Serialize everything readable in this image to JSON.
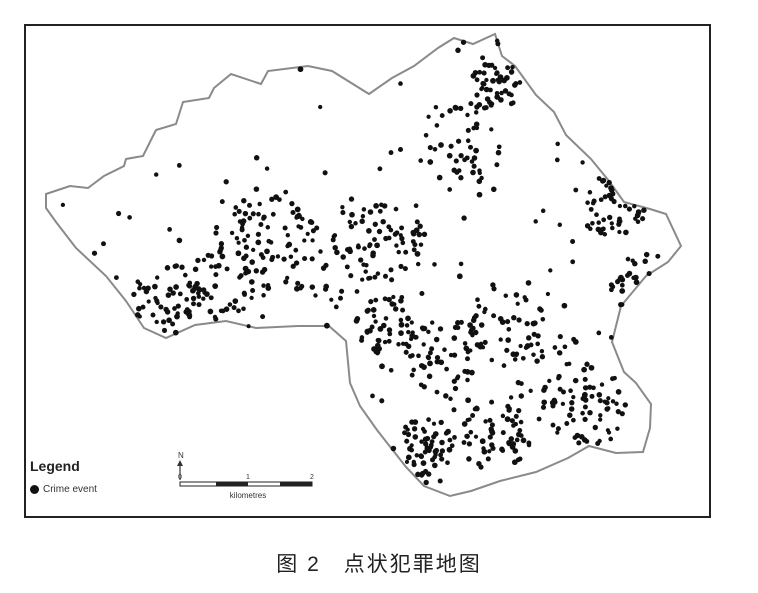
{
  "legend": {
    "title": "Legend",
    "item_label": "Crime event"
  },
  "scale_bar": {
    "ticks": [
      "0",
      "1",
      "2"
    ],
    "unit": "kilometres",
    "north": "N"
  },
  "caption": "图 2　点状犯罪地图",
  "colors": {
    "dot": "#111111",
    "boundary": "#8a8a8a",
    "frame": "#222222"
  }
}
